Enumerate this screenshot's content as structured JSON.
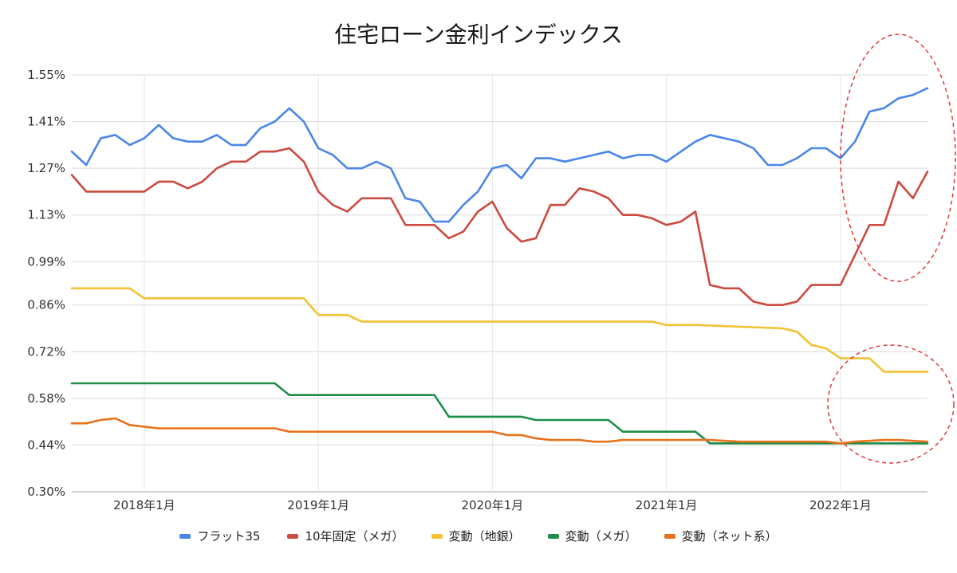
{
  "chart_data": {
    "type": "line",
    "title": "住宅ローン金利インデックス",
    "ylim": [
      0.3,
      1.55
    ],
    "yticks": [
      "1.55%",
      "1.41%",
      "1.27%",
      "1.13%",
      "0.99%",
      "0.86%",
      "0.72%",
      "0.58%",
      "0.44%",
      "0.30%"
    ],
    "ytick_values": [
      1.55,
      1.41,
      1.27,
      1.13,
      0.99,
      0.86,
      0.72,
      0.58,
      0.44,
      0.3
    ],
    "xrange": [
      "2017-08",
      "2022-06"
    ],
    "xticks": [
      {
        "label": "2018年1月",
        "date": "2018-01"
      },
      {
        "label": "2019年1月",
        "date": "2019-01"
      },
      {
        "label": "2020年1月",
        "date": "2020-01"
      },
      {
        "label": "2021年1月",
        "date": "2021-01"
      },
      {
        "label": "2022年1月",
        "date": "2022-01"
      }
    ],
    "grid": true,
    "legend_position": "bottom",
    "series": [
      {
        "name": "フラット35",
        "color": "#4a86e8",
        "points": [
          [
            "2017-08",
            1.32
          ],
          [
            "2017-09",
            1.28
          ],
          [
            "2017-10",
            1.36
          ],
          [
            "2017-11",
            1.37
          ],
          [
            "2017-12",
            1.34
          ],
          [
            "2018-01",
            1.36
          ],
          [
            "2018-02",
            1.4
          ],
          [
            "2018-03",
            1.36
          ],
          [
            "2018-04",
            1.35
          ],
          [
            "2018-05",
            1.35
          ],
          [
            "2018-06",
            1.37
          ],
          [
            "2018-07",
            1.34
          ],
          [
            "2018-08",
            1.34
          ],
          [
            "2018-09",
            1.39
          ],
          [
            "2018-10",
            1.41
          ],
          [
            "2018-11",
            1.45
          ],
          [
            "2018-12",
            1.41
          ],
          [
            "2019-01",
            1.33
          ],
          [
            "2019-02",
            1.31
          ],
          [
            "2019-03",
            1.27
          ],
          [
            "2019-04",
            1.27
          ],
          [
            "2019-05",
            1.29
          ],
          [
            "2019-06",
            1.27
          ],
          [
            "2019-07",
            1.18
          ],
          [
            "2019-08",
            1.17
          ],
          [
            "2019-09",
            1.11
          ],
          [
            "2019-10",
            1.11
          ],
          [
            "2019-11",
            1.16
          ],
          [
            "2019-12",
            1.2
          ],
          [
            "2020-01",
            1.27
          ],
          [
            "2020-02",
            1.28
          ],
          [
            "2020-03",
            1.24
          ],
          [
            "2020-04",
            1.3
          ],
          [
            "2020-05",
            1.3
          ],
          [
            "2020-06",
            1.29
          ],
          [
            "2020-07",
            1.3
          ],
          [
            "2020-08",
            1.31
          ],
          [
            "2020-09",
            1.32
          ],
          [
            "2020-10",
            1.3
          ],
          [
            "2020-11",
            1.31
          ],
          [
            "2020-12",
            1.31
          ],
          [
            "2021-01",
            1.29
          ],
          [
            "2021-02",
            1.32
          ],
          [
            "2021-03",
            1.35
          ],
          [
            "2021-04",
            1.37
          ],
          [
            "2021-05",
            1.36
          ],
          [
            "2021-06",
            1.35
          ],
          [
            "2021-07",
            1.33
          ],
          [
            "2021-08",
            1.28
          ],
          [
            "2021-09",
            1.28
          ],
          [
            "2021-10",
            1.3
          ],
          [
            "2021-11",
            1.33
          ],
          [
            "2021-12",
            1.33
          ],
          [
            "2022-01",
            1.3
          ],
          [
            "2022-02",
            1.35
          ],
          [
            "2022-03",
            1.44
          ],
          [
            "2022-04",
            1.45
          ],
          [
            "2022-05",
            1.48
          ],
          [
            "2022-06",
            1.49
          ],
          [
            "2022-07",
            1.51
          ]
        ]
      },
      {
        "name": "10年固定（メガ）",
        "color": "#cc4a3f",
        "points": [
          [
            "2017-08",
            1.25
          ],
          [
            "2017-09",
            1.2
          ],
          [
            "2017-10",
            1.2
          ],
          [
            "2017-11",
            1.2
          ],
          [
            "2017-12",
            1.2
          ],
          [
            "2018-01",
            1.2
          ],
          [
            "2018-02",
            1.23
          ],
          [
            "2018-03",
            1.23
          ],
          [
            "2018-04",
            1.21
          ],
          [
            "2018-05",
            1.23
          ],
          [
            "2018-06",
            1.27
          ],
          [
            "2018-07",
            1.29
          ],
          [
            "2018-08",
            1.29
          ],
          [
            "2018-09",
            1.32
          ],
          [
            "2018-10",
            1.32
          ],
          [
            "2018-11",
            1.33
          ],
          [
            "2018-12",
            1.29
          ],
          [
            "2019-01",
            1.2
          ],
          [
            "2019-02",
            1.16
          ],
          [
            "2019-03",
            1.14
          ],
          [
            "2019-04",
            1.18
          ],
          [
            "2019-05",
            1.18
          ],
          [
            "2019-06",
            1.18
          ],
          [
            "2019-07",
            1.1
          ],
          [
            "2019-08",
            1.1
          ],
          [
            "2019-09",
            1.1
          ],
          [
            "2019-10",
            1.06
          ],
          [
            "2019-11",
            1.08
          ],
          [
            "2019-12",
            1.14
          ],
          [
            "2020-01",
            1.17
          ],
          [
            "2020-02",
            1.09
          ],
          [
            "2020-03",
            1.05
          ],
          [
            "2020-04",
            1.06
          ],
          [
            "2020-05",
            1.16
          ],
          [
            "2020-06",
            1.16
          ],
          [
            "2020-07",
            1.21
          ],
          [
            "2020-08",
            1.2
          ],
          [
            "2020-09",
            1.18
          ],
          [
            "2020-10",
            1.13
          ],
          [
            "2020-11",
            1.13
          ],
          [
            "2020-12",
            1.12
          ],
          [
            "2021-01",
            1.1
          ],
          [
            "2021-02",
            1.11
          ],
          [
            "2021-03",
            1.14
          ],
          [
            "2021-04",
            0.92
          ],
          [
            "2021-05",
            0.91
          ],
          [
            "2021-06",
            0.91
          ],
          [
            "2021-07",
            0.87
          ],
          [
            "2021-08",
            0.86
          ],
          [
            "2021-09",
            0.86
          ],
          [
            "2021-10",
            0.87
          ],
          [
            "2021-11",
            0.92
          ],
          [
            "2021-12",
            0.92
          ],
          [
            "2022-01",
            0.92
          ],
          [
            "2022-02",
            1.01
          ],
          [
            "2022-03",
            1.1
          ],
          [
            "2022-04",
            1.1
          ],
          [
            "2022-05",
            1.23
          ],
          [
            "2022-06",
            1.18
          ],
          [
            "2022-07",
            1.26
          ]
        ]
      },
      {
        "name": "変動（地銀）",
        "color": "#f1c232",
        "points": [
          [
            "2017-08",
            0.91
          ],
          [
            "2017-12",
            0.91
          ],
          [
            "2018-01",
            0.88
          ],
          [
            "2018-12",
            0.88
          ],
          [
            "2019-01",
            0.83
          ],
          [
            "2019-03",
            0.83
          ],
          [
            "2019-04",
            0.81
          ],
          [
            "2019-06",
            0.81
          ],
          [
            "2019-07",
            0.81
          ],
          [
            "2020-01",
            0.81
          ],
          [
            "2020-07",
            0.81
          ],
          [
            "2020-12",
            0.81
          ],
          [
            "2021-01",
            0.8
          ],
          [
            "2021-02",
            0.8
          ],
          [
            "2021-03",
            0.8
          ],
          [
            "2021-09",
            0.79
          ],
          [
            "2021-10",
            0.78
          ],
          [
            "2021-11",
            0.74
          ],
          [
            "2021-12",
            0.73
          ],
          [
            "2022-01",
            0.7
          ],
          [
            "2022-02",
            0.7
          ],
          [
            "2022-03",
            0.7
          ],
          [
            "2022-04",
            0.66
          ],
          [
            "2022-05",
            0.66
          ],
          [
            "2022-06",
            0.66
          ],
          [
            "2022-07",
            0.66
          ]
        ]
      },
      {
        "name": "変動（メガ）",
        "color": "#1e8e4a",
        "points": [
          [
            "2017-08",
            0.625
          ],
          [
            "2018-10",
            0.625
          ],
          [
            "2018-11",
            0.59
          ],
          [
            "2019-09",
            0.59
          ],
          [
            "2019-10",
            0.525
          ],
          [
            "2020-01",
            0.525
          ],
          [
            "2020-02",
            0.525
          ],
          [
            "2020-03",
            0.525
          ],
          [
            "2020-04",
            0.515
          ],
          [
            "2020-09",
            0.515
          ],
          [
            "2020-10",
            0.48
          ],
          [
            "2021-03",
            0.48
          ],
          [
            "2021-04",
            0.445
          ],
          [
            "2022-07",
            0.445
          ]
        ]
      },
      {
        "name": "変動（ネット系）",
        "color": "#e8711a",
        "points": [
          [
            "2017-08",
            0.505
          ],
          [
            "2017-09",
            0.505
          ],
          [
            "2017-10",
            0.515
          ],
          [
            "2017-11",
            0.52
          ],
          [
            "2017-12",
            0.5
          ],
          [
            "2018-01",
            0.495
          ],
          [
            "2018-02",
            0.49
          ],
          [
            "2018-10",
            0.49
          ],
          [
            "2018-11",
            0.48
          ],
          [
            "2019-09",
            0.48
          ],
          [
            "2020-01",
            0.48
          ],
          [
            "2020-02",
            0.47
          ],
          [
            "2020-03",
            0.47
          ],
          [
            "2020-04",
            0.46
          ],
          [
            "2020-05",
            0.455
          ],
          [
            "2020-07",
            0.455
          ],
          [
            "2020-08",
            0.45
          ],
          [
            "2020-09",
            0.45
          ],
          [
            "2020-10",
            0.455
          ],
          [
            "2021-03",
            0.455
          ],
          [
            "2021-04",
            0.455
          ],
          [
            "2021-06",
            0.45
          ],
          [
            "2021-12",
            0.45
          ],
          [
            "2022-01",
            0.445
          ],
          [
            "2022-02",
            0.45
          ],
          [
            "2022-04",
            0.455
          ],
          [
            "2022-05",
            0.455
          ],
          [
            "2022-07",
            0.45
          ]
        ]
      }
    ]
  }
}
